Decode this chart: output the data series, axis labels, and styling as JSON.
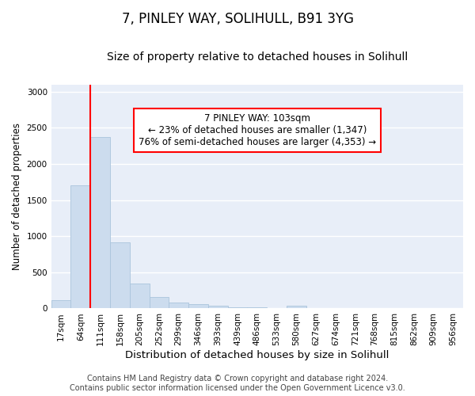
{
  "title": "7, PINLEY WAY, SOLIHULL, B91 3YG",
  "subtitle": "Size of property relative to detached houses in Solihull",
  "xlabel": "Distribution of detached houses by size in Solihull",
  "ylabel": "Number of detached properties",
  "bar_labels": [
    "17sqm",
    "64sqm",
    "111sqm",
    "158sqm",
    "205sqm",
    "252sqm",
    "299sqm",
    "346sqm",
    "393sqm",
    "439sqm",
    "486sqm",
    "533sqm",
    "580sqm",
    "627sqm",
    "674sqm",
    "721sqm",
    "768sqm",
    "815sqm",
    "862sqm",
    "909sqm",
    "956sqm"
  ],
  "bar_values": [
    115,
    1700,
    2370,
    920,
    340,
    155,
    80,
    55,
    35,
    20,
    20,
    0,
    35,
    0,
    0,
    0,
    0,
    0,
    0,
    0,
    0
  ],
  "bar_color": "#ccdcee",
  "bar_edgecolor": "#aac4dc",
  "vline_x": 2.0,
  "vline_color": "red",
  "ylim": [
    0,
    3100
  ],
  "yticks": [
    0,
    500,
    1000,
    1500,
    2000,
    2500,
    3000
  ],
  "annotation_text": "7 PINLEY WAY: 103sqm\n← 23% of detached houses are smaller (1,347)\n76% of semi-detached houses are larger (4,353) →",
  "annotation_box_color": "white",
  "annotation_box_edgecolor": "red",
  "footer_line1": "Contains HM Land Registry data © Crown copyright and database right 2024.",
  "footer_line2": "Contains public sector information licensed under the Open Government Licence v3.0.",
  "background_color": "#ffffff",
  "plot_bg_color": "#e8eef8",
  "grid_color": "white",
  "title_fontsize": 12,
  "subtitle_fontsize": 10,
  "xlabel_fontsize": 9.5,
  "ylabel_fontsize": 8.5,
  "tick_fontsize": 7.5,
  "footer_fontsize": 7,
  "annotation_fontsize": 8.5
}
